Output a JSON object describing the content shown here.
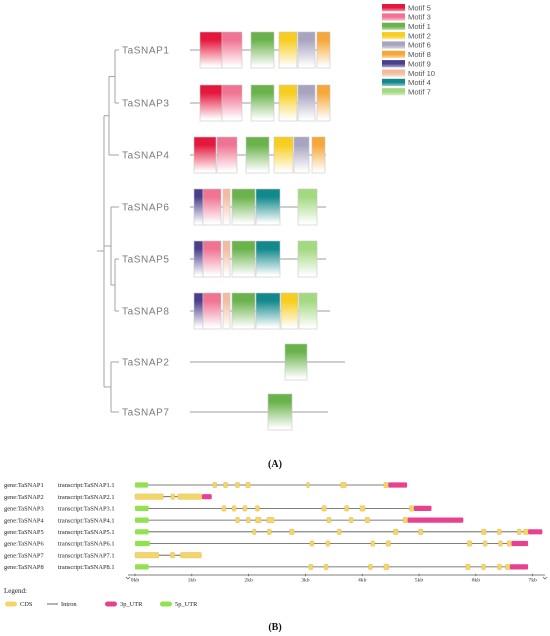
{
  "panel_a": {
    "caption": "(A)",
    "legend": [
      {
        "id": 5,
        "label": "Motif 5",
        "color": "#e5173d"
      },
      {
        "id": 3,
        "label": "Motif 3",
        "color": "#f07394"
      },
      {
        "id": 1,
        "label": "Motif 1",
        "color": "#6ab34c"
      },
      {
        "id": 2,
        "label": "Motif 2",
        "color": "#f7cd1f"
      },
      {
        "id": 6,
        "label": "Motif 6",
        "color": "#a8a4bf"
      },
      {
        "id": 8,
        "label": "Motif 8",
        "color": "#f6a737"
      },
      {
        "id": 9,
        "label": "Motif 9",
        "color": "#4b3f8c"
      },
      {
        "id": 10,
        "label": "Motif 10",
        "color": "#f2bd9e"
      },
      {
        "id": 4,
        "label": "Motif 4",
        "color": "#13898c"
      },
      {
        "id": 7,
        "label": "Motif 7",
        "color": "#a3d97f"
      }
    ],
    "genes": [
      {
        "name": "TaSNAP1",
        "motifs": [
          5,
          3,
          1,
          2,
          6,
          8
        ]
      },
      {
        "name": "TaSNAP3",
        "motifs": [
          5,
          3,
          1,
          2,
          6,
          8
        ]
      },
      {
        "name": "TaSNAP4",
        "motifs": [
          5,
          3,
          1,
          2,
          6,
          8
        ]
      },
      {
        "name": "TaSNAP6",
        "motifs": [
          9,
          3,
          10,
          1,
          4,
          7
        ]
      },
      {
        "name": "TaSNAP5",
        "motifs": [
          9,
          3,
          10,
          1,
          4,
          7
        ]
      },
      {
        "name": "TaSNAP8",
        "motifs": [
          9,
          3,
          10,
          1,
          4,
          2,
          7
        ]
      },
      {
        "name": "TaSNAP2",
        "motifs": [
          1
        ]
      },
      {
        "name": "TaSNAP7",
        "motifs": [
          1
        ]
      }
    ]
  },
  "panel_b": {
    "caption": "(B)",
    "axis_ticks": [
      "0kb",
      "1kb",
      "2kb",
      "3kb",
      "4kb",
      "5kb",
      "6kb",
      "7kb"
    ],
    "rows": [
      {
        "gene": "gene:TaSNAP1",
        "transcript": "transcript:TaSNAP1.1",
        "5p_UTR": [
          [
            0,
            0.23
          ]
        ],
        "CDS": [
          [
            1.37,
            1.44
          ],
          [
            1.56,
            1.63
          ],
          [
            1.77,
            1.84
          ],
          [
            1.95,
            2.03
          ],
          [
            3.02,
            3.07
          ],
          [
            3.62,
            3.72
          ],
          [
            4.38,
            4.46
          ]
        ],
        "3p_UTR": [
          [
            4.46,
            4.79
          ]
        ]
      },
      {
        "gene": "gene:TaSNAP2",
        "transcript": "transcript:TaSNAP2.1",
        "CDS": [
          [
            0,
            0.5
          ],
          [
            0.63,
            0.7
          ],
          [
            0.75,
            1.18
          ]
        ],
        "3p_UTR": [
          [
            1.18,
            1.35
          ]
        ]
      },
      {
        "gene": "gene:TaSNAP3",
        "transcript": "transcript:TaSNAP3.1",
        "5p_UTR": [
          [
            0,
            0.24
          ]
        ],
        "CDS": [
          [
            1.53,
            1.6
          ],
          [
            1.71,
            1.78
          ],
          [
            1.9,
            1.97
          ],
          [
            2.12,
            2.19
          ],
          [
            3.29,
            3.37
          ],
          [
            3.69,
            3.76
          ],
          [
            3.96,
            4.05
          ],
          [
            4.83,
            4.91
          ]
        ],
        "3p_UTR": [
          [
            4.91,
            5.22
          ]
        ]
      },
      {
        "gene": "gene:TaSNAP4",
        "transcript": "transcript:TaSNAP4.1",
        "5p_UTR": [
          [
            0,
            0.24
          ]
        ],
        "CDS": [
          [
            1.77,
            1.84
          ],
          [
            1.96,
            2.03
          ],
          [
            2.12,
            2.22
          ],
          [
            2.32,
            2.45
          ],
          [
            3.38,
            3.45
          ],
          [
            3.77,
            3.84
          ],
          [
            4.05,
            4.13
          ],
          [
            4.72,
            4.8
          ]
        ],
        "3p_UTR": [
          [
            4.8,
            5.78
          ]
        ]
      },
      {
        "gene": "gene:TaSNAP5",
        "transcript": "transcript:TaSNAP5.1",
        "5p_UTR": [
          [
            0,
            0.24
          ]
        ],
        "CDS": [
          [
            2.07,
            2.13
          ],
          [
            2.33,
            2.4
          ],
          [
            2.72,
            2.8
          ],
          [
            3.56,
            3.63
          ],
          [
            4.55,
            4.63
          ],
          [
            4.99,
            5.07
          ],
          [
            6.1,
            6.18
          ],
          [
            6.38,
            6.45
          ],
          [
            6.73,
            6.8
          ],
          [
            6.84,
            6.92
          ]
        ],
        "3p_UTR": [
          [
            6.92,
            7.17
          ]
        ]
      },
      {
        "gene": "gene:TaSNAP6",
        "transcript": "transcript:TaSNAP6.1",
        "5p_UTR": [
          [
            0,
            0.26
          ]
        ],
        "CDS": [
          [
            3.08,
            3.15
          ],
          [
            3.36,
            3.43
          ],
          [
            4.15,
            4.22
          ],
          [
            4.42,
            4.5
          ],
          [
            5.85,
            5.93
          ],
          [
            6.13,
            6.2
          ],
          [
            6.4,
            6.47
          ],
          [
            6.55,
            6.63
          ]
        ],
        "3p_UTR": [
          [
            6.63,
            6.92
          ]
        ]
      },
      {
        "gene": "gene:TaSNAP7",
        "transcript": "transcript:TaSNAP7.1",
        "CDS": [
          [
            0,
            0.42
          ],
          [
            0.62,
            0.7
          ],
          [
            0.8,
            1.17
          ]
        ]
      },
      {
        "gene": "gene:TaSNAP8",
        "transcript": "transcript:TaSNAP8.1",
        "5p_UTR": [
          [
            0,
            0.24
          ]
        ],
        "CDS": [
          [
            3.06,
            3.13
          ],
          [
            3.33,
            3.4
          ],
          [
            4.11,
            4.18
          ],
          [
            4.38,
            4.47
          ],
          [
            5.82,
            5.9
          ],
          [
            6.1,
            6.17
          ],
          [
            6.38,
            6.45
          ],
          [
            6.52,
            6.6
          ]
        ],
        "3p_UTR": [
          [
            6.6,
            6.92
          ]
        ]
      }
    ],
    "legend_title": "Legend:",
    "legend": {
      "cds": {
        "label": "CDS",
        "color": "#f4d56a"
      },
      "intron": {
        "label": "Intron",
        "color": "#555555"
      },
      "utr3": {
        "label": "3p_UTR",
        "color": "#e8418f"
      },
      "utr5": {
        "label": "5p_UTR",
        "color": "#90e24f"
      }
    }
  }
}
